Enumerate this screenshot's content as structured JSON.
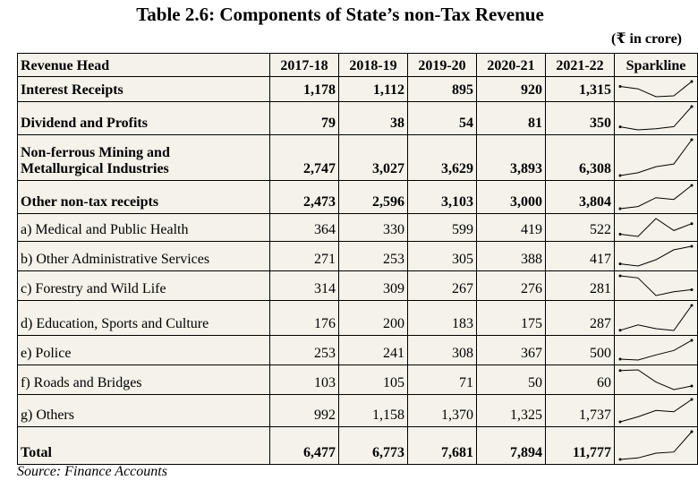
{
  "title": "Table 2.6: Components of State’s non-Tax Revenue",
  "unit": "(₹ in crore)",
  "table": {
    "headers": [
      "Revenue Head",
      "2017-18",
      "2018-19",
      "2019-20",
      "2020-21",
      "2021-22",
      "Sparkline"
    ],
    "rows": [
      {
        "label": "Interest Receipts",
        "bold": true,
        "values": [
          "1,178",
          "1,112",
          "895",
          "920",
          "1,315"
        ],
        "series": [
          1178,
          1112,
          895,
          920,
          1315
        ]
      },
      {
        "label": "Dividend and Profits",
        "bold": true,
        "values": [
          "79",
          "38",
          "54",
          "81",
          "350"
        ],
        "series": [
          79,
          38,
          54,
          81,
          350
        ]
      },
      {
        "label": "Non-ferrous Mining and Metallurgical Industries",
        "label_lines": [
          "Non-ferrous Mining and",
          "Metallurgical Industries"
        ],
        "bold": true,
        "values": [
          "2,747",
          "3,027",
          "3,629",
          "3,893",
          "6,308"
        ],
        "series": [
          2747,
          3027,
          3629,
          3893,
          6308
        ]
      },
      {
        "label": "Other non-tax receipts",
        "bold": true,
        "values": [
          "2,473",
          "2,596",
          "3,103",
          "3,000",
          "3,804"
        ],
        "series": [
          2473,
          2596,
          3103,
          3000,
          3804
        ]
      },
      {
        "label": "a) Medical and Public Health",
        "bold": false,
        "values": [
          "364",
          "330",
          "599",
          "419",
          "522"
        ],
        "series": [
          364,
          330,
          599,
          419,
          522
        ]
      },
      {
        "label": "b) Other Administrative Services",
        "bold": false,
        "values": [
          "271",
          "253",
          "305",
          "388",
          "417"
        ],
        "series": [
          271,
          253,
          305,
          388,
          417
        ]
      },
      {
        "label": "c) Forestry and Wild Life",
        "bold": false,
        "values": [
          "314",
          "309",
          "267",
          "276",
          "281"
        ],
        "series": [
          314,
          309,
          267,
          276,
          281
        ]
      },
      {
        "label": "d) Education, Sports and Culture",
        "bold": false,
        "values": [
          "176",
          "200",
          "183",
          "175",
          "287"
        ],
        "series": [
          176,
          200,
          183,
          175,
          287
        ]
      },
      {
        "label": "e) Police",
        "bold": false,
        "values": [
          "253",
          "241",
          "308",
          "367",
          "500"
        ],
        "series": [
          253,
          241,
          308,
          367,
          500
        ]
      },
      {
        "label": "f) Roads and Bridges",
        "bold": false,
        "values": [
          "103",
          "105",
          "71",
          "50",
          "60"
        ],
        "series": [
          103,
          105,
          71,
          50,
          60
        ]
      },
      {
        "label": "g) Others",
        "bold": false,
        "values": [
          "992",
          "1,158",
          "1,370",
          "1,325",
          "1,737"
        ],
        "series": [
          992,
          1158,
          1370,
          1325,
          1737
        ]
      },
      {
        "label": "Total",
        "bold": true,
        "values": [
          "6,477",
          "6,773",
          "7,681",
          "7,894",
          "11,777"
        ],
        "series": [
          6477,
          6773,
          7681,
          7894,
          11777
        ]
      }
    ]
  },
  "source": "Source: Finance Accounts",
  "colors": {
    "table_bg": "#f4f2ea",
    "border": "#000000",
    "sparkline": "#000000"
  }
}
